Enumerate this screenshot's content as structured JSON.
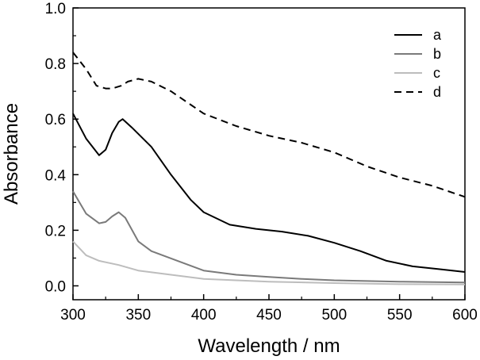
{
  "chart_data": {
    "type": "line",
    "title": "",
    "xlabel": "Wavelength / nm",
    "ylabel": "Absorbance",
    "xlim": [
      300,
      600
    ],
    "ylim": [
      -0.05,
      1.0
    ],
    "xticks": [
      300,
      350,
      400,
      450,
      500,
      550,
      600
    ],
    "xtick_labels": [
      "300",
      "350",
      "400",
      "450",
      "500",
      "550",
      "600"
    ],
    "yticks": [
      0.0,
      0.2,
      0.4,
      0.6,
      0.8,
      1.0
    ],
    "ytick_labels": [
      "0.0",
      "0.2",
      "0.4",
      "0.6",
      "0.8",
      "1.0"
    ],
    "grid": false,
    "legend_position": "top-right",
    "series": [
      {
        "name": "a",
        "color": "#000000",
        "dash": "solid",
        "points": [
          [
            300,
            0.62
          ],
          [
            310,
            0.53
          ],
          [
            320,
            0.47
          ],
          [
            325,
            0.49
          ],
          [
            330,
            0.55
          ],
          [
            335,
            0.59
          ],
          [
            338,
            0.6
          ],
          [
            345,
            0.57
          ],
          [
            360,
            0.5
          ],
          [
            375,
            0.4
          ],
          [
            390,
            0.31
          ],
          [
            400,
            0.265
          ],
          [
            420,
            0.22
          ],
          [
            440,
            0.205
          ],
          [
            460,
            0.195
          ],
          [
            480,
            0.18
          ],
          [
            500,
            0.155
          ],
          [
            520,
            0.125
          ],
          [
            540,
            0.09
          ],
          [
            560,
            0.07
          ],
          [
            580,
            0.06
          ],
          [
            600,
            0.05
          ]
        ]
      },
      {
        "name": "b",
        "color": "#7a7a7a",
        "dash": "solid",
        "points": [
          [
            300,
            0.34
          ],
          [
            310,
            0.26
          ],
          [
            320,
            0.225
          ],
          [
            325,
            0.23
          ],
          [
            330,
            0.25
          ],
          [
            335,
            0.265
          ],
          [
            340,
            0.245
          ],
          [
            350,
            0.16
          ],
          [
            360,
            0.125
          ],
          [
            380,
            0.09
          ],
          [
            400,
            0.055
          ],
          [
            425,
            0.04
          ],
          [
            450,
            0.032
          ],
          [
            475,
            0.025
          ],
          [
            500,
            0.02
          ],
          [
            550,
            0.015
          ],
          [
            600,
            0.012
          ]
        ]
      },
      {
        "name": "c",
        "color": "#bdbdbd",
        "dash": "solid",
        "points": [
          [
            300,
            0.16
          ],
          [
            310,
            0.11
          ],
          [
            320,
            0.09
          ],
          [
            335,
            0.075
          ],
          [
            350,
            0.055
          ],
          [
            375,
            0.04
          ],
          [
            400,
            0.025
          ],
          [
            450,
            0.015
          ],
          [
            500,
            0.01
          ],
          [
            550,
            0.006
          ],
          [
            600,
            0.005
          ]
        ]
      },
      {
        "name": "d",
        "color": "#000000",
        "dash": "dashed",
        "points": [
          [
            300,
            0.84
          ],
          [
            310,
            0.78
          ],
          [
            318,
            0.72
          ],
          [
            325,
            0.71
          ],
          [
            330,
            0.71
          ],
          [
            337,
            0.72
          ],
          [
            342,
            0.735
          ],
          [
            350,
            0.745
          ],
          [
            360,
            0.735
          ],
          [
            375,
            0.7
          ],
          [
            400,
            0.62
          ],
          [
            425,
            0.575
          ],
          [
            450,
            0.54
          ],
          [
            475,
            0.515
          ],
          [
            500,
            0.48
          ],
          [
            525,
            0.43
          ],
          [
            550,
            0.39
          ],
          [
            575,
            0.36
          ],
          [
            600,
            0.32
          ]
        ]
      }
    ]
  }
}
